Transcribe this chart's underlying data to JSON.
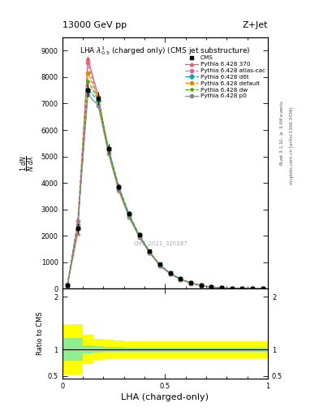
{
  "title_top": "13000 GeV pp",
  "title_right": "Z+Jet",
  "plot_title": "LHA $\\lambda^{1}_{0.5}$ (charged only) (CMS jet substructure)",
  "xlabel": "LHA (charged-only)",
  "ylabel_ratio": "Ratio to CMS",
  "right_label1": "Rivet 3.1.10, $\\geq$ 3.4M events",
  "right_label2": "mcplots.cern.ch [arXiv:1306.3436]",
  "watermark": "CMS_2021_320187",
  "x_data": [
    0.025,
    0.075,
    0.125,
    0.175,
    0.225,
    0.275,
    0.325,
    0.375,
    0.425,
    0.475,
    0.525,
    0.575,
    0.625,
    0.675,
    0.725,
    0.775,
    0.825,
    0.875,
    0.925,
    0.975
  ],
  "cms_y": [
    150,
    2300,
    7500,
    7200,
    5300,
    3850,
    2850,
    2050,
    1430,
    920,
    600,
    375,
    225,
    125,
    68,
    38,
    20,
    8,
    3,
    1
  ],
  "cms_yerr": [
    30,
    180,
    250,
    250,
    180,
    130,
    95,
    70,
    55,
    38,
    28,
    18,
    13,
    9,
    5,
    3,
    2,
    1,
    0.4,
    0.2
  ],
  "py370_y": [
    120,
    2100,
    8700,
    7300,
    5150,
    3720,
    2720,
    1960,
    1360,
    875,
    572,
    358,
    212,
    118,
    63,
    33,
    17,
    6.5,
    2.3,
    0.8
  ],
  "py_atlas_y": [
    160,
    2550,
    8550,
    7100,
    5220,
    3760,
    2760,
    1985,
    1375,
    880,
    575,
    362,
    217,
    122,
    65,
    35,
    18,
    7,
    2.6,
    0.9
  ],
  "py_d6t_y": [
    140,
    2280,
    7550,
    7100,
    5310,
    3860,
    2825,
    2025,
    1405,
    902,
    592,
    372,
    222,
    126,
    67,
    37,
    18.5,
    7.2,
    2.7,
    0.9
  ],
  "py_default_y": [
    150,
    2380,
    8150,
    7220,
    5220,
    3790,
    2765,
    1992,
    1382,
    883,
    578,
    364,
    218,
    123,
    66,
    36,
    18.5,
    7.2,
    2.7,
    0.9
  ],
  "py_dw_y": [
    145,
    2320,
    7850,
    7160,
    5255,
    3825,
    2795,
    2012,
    1392,
    890,
    585,
    368,
    220,
    124,
    67,
    36,
    18.5,
    7.2,
    2.7,
    0.9
  ],
  "py_p0_y": [
    130,
    2420,
    7350,
    6920,
    5110,
    3730,
    2705,
    1952,
    1362,
    868,
    572,
    358,
    214,
    120,
    65,
    35,
    18,
    7,
    2.6,
    0.9
  ],
  "ratio_x": [
    0.0,
    0.05,
    0.1,
    0.15,
    0.2,
    0.25,
    0.3,
    0.35,
    0.4,
    0.45,
    0.5,
    0.55,
    0.6,
    0.65,
    0.7,
    0.75,
    0.8,
    0.85,
    0.9,
    0.95,
    1.0
  ],
  "ratio_green_lo": [
    0.78,
    0.78,
    0.92,
    0.94,
    0.95,
    0.95,
    0.96,
    0.96,
    0.96,
    0.96,
    0.96,
    0.96,
    0.96,
    0.96,
    0.96,
    0.96,
    0.96,
    0.96,
    0.96,
    0.96,
    0.96
  ],
  "ratio_green_hi": [
    1.22,
    1.22,
    1.08,
    1.06,
    1.05,
    1.05,
    1.04,
    1.04,
    1.04,
    1.04,
    1.04,
    1.04,
    1.04,
    1.04,
    1.04,
    1.04,
    1.04,
    1.04,
    1.04,
    1.04,
    1.04
  ],
  "ratio_yellow_lo": [
    0.52,
    0.52,
    0.72,
    0.8,
    0.82,
    0.83,
    0.84,
    0.84,
    0.84,
    0.84,
    0.84,
    0.84,
    0.84,
    0.84,
    0.84,
    0.84,
    0.84,
    0.84,
    0.84,
    0.84,
    0.84
  ],
  "ratio_yellow_hi": [
    1.48,
    1.48,
    1.28,
    1.2,
    1.18,
    1.17,
    1.16,
    1.16,
    1.16,
    1.16,
    1.16,
    1.16,
    1.16,
    1.16,
    1.16,
    1.16,
    1.16,
    1.16,
    1.16,
    1.16,
    1.16
  ],
  "color_370": "#e06060",
  "color_atlas": "#e060a0",
  "color_d6t": "#00aaaa",
  "color_default": "#e08800",
  "color_dw": "#44aa00",
  "color_p0": "#888888",
  "color_cms": "#000000",
  "ylim_main": [
    0,
    9500
  ],
  "yticks_main": [
    0,
    1000,
    2000,
    3000,
    4000,
    5000,
    6000,
    7000,
    8000,
    9000
  ],
  "ylim_ratio": [
    0.45,
    2.15
  ],
  "xlim": [
    0.0,
    1.0
  ]
}
